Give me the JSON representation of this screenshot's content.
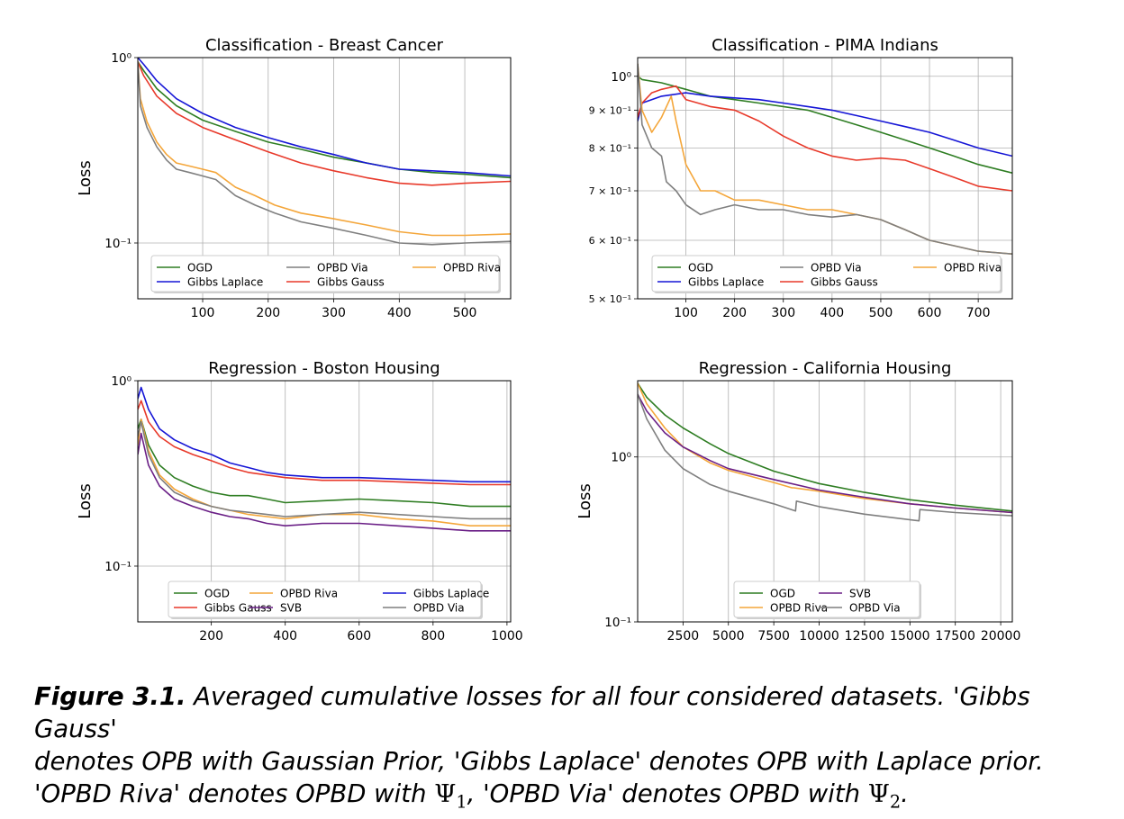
{
  "figure": {
    "label": "Figure 3.1.",
    "caption_line1": " Averaged cumulative losses for all four considered datasets. 'Gibbs Gauss'",
    "caption_line2": "denotes OPB with Gaussian Prior, 'Gibbs Laplace' denotes OPB with Laplace prior.",
    "caption_line3a": "'OPBD Riva' denotes OPBD with ",
    "psi": "Ψ",
    "sub1": "1",
    "caption_line3b": ", 'OPBD Via' denotes OPBD with ",
    "sub2": "2",
    "caption_line3c": "."
  },
  "colors": {
    "OGD": "#2e7d22",
    "Gibbs Gauss": "#e8392a",
    "Gibbs Laplace": "#1515d6",
    "OPBD Riva": "#f4a63a",
    "OPBD Via": "#7f7f7f",
    "SVB": "#6a1f86"
  },
  "chart_data": [
    {
      "type": "line",
      "title": "Classification - Breast Cancer",
      "ylabel": "Loss",
      "xlim": [
        1,
        570
      ],
      "ylim": [
        0.05,
        1.0
      ],
      "yscale": "log",
      "grid": true,
      "xticks": [
        100,
        200,
        300,
        400,
        500
      ],
      "xtick_labels": [
        "100",
        "200",
        "300",
        "400",
        "500"
      ],
      "yticks": [
        1.0,
        0.1
      ],
      "ytick_labels": [
        "10⁰",
        "10⁻¹"
      ],
      "legend": {
        "placement": "lower-center",
        "ncol": 3,
        "entries": [
          "OGD",
          "Gibbs Laplace",
          "OPBD Via",
          "Gibbs Gauss",
          "OPBD Riva"
        ]
      },
      "series": [
        {
          "name": "OGD",
          "x": [
            1,
            10,
            30,
            60,
            100,
            150,
            200,
            250,
            300,
            350,
            400,
            450,
            500,
            570
          ],
          "y": [
            0.95,
            0.85,
            0.68,
            0.55,
            0.46,
            0.4,
            0.35,
            0.32,
            0.29,
            0.27,
            0.25,
            0.24,
            0.235,
            0.225
          ]
        },
        {
          "name": "Gibbs Laplace",
          "x": [
            1,
            10,
            30,
            60,
            100,
            150,
            200,
            250,
            300,
            350,
            400,
            450,
            500,
            570
          ],
          "y": [
            1.0,
            0.92,
            0.75,
            0.6,
            0.5,
            0.42,
            0.37,
            0.33,
            0.3,
            0.27,
            0.25,
            0.245,
            0.24,
            0.23
          ]
        },
        {
          "name": "Gibbs Gauss",
          "x": [
            1,
            10,
            30,
            60,
            100,
            150,
            200,
            250,
            300,
            350,
            400,
            450,
            500,
            570
          ],
          "y": [
            0.95,
            0.8,
            0.62,
            0.5,
            0.42,
            0.36,
            0.31,
            0.27,
            0.245,
            0.225,
            0.21,
            0.205,
            0.21,
            0.215
          ]
        },
        {
          "name": "OPBD Riva",
          "x": [
            1,
            5,
            15,
            30,
            45,
            60,
            80,
            100,
            120,
            150,
            180,
            210,
            250,
            300,
            350,
            400,
            450,
            500,
            570
          ],
          "y": [
            0.95,
            0.6,
            0.45,
            0.35,
            0.3,
            0.27,
            0.26,
            0.25,
            0.24,
            0.2,
            0.18,
            0.16,
            0.145,
            0.135,
            0.125,
            0.115,
            0.11,
            0.11,
            0.112
          ]
        },
        {
          "name": "OPBD Via",
          "x": [
            1,
            5,
            15,
            30,
            45,
            60,
            80,
            100,
            120,
            150,
            180,
            210,
            250,
            300,
            350,
            400,
            450,
            500,
            570
          ],
          "y": [
            0.95,
            0.55,
            0.42,
            0.33,
            0.28,
            0.25,
            0.24,
            0.23,
            0.22,
            0.18,
            0.16,
            0.145,
            0.13,
            0.12,
            0.11,
            0.1,
            0.098,
            0.1,
            0.102
          ]
        }
      ]
    },
    {
      "type": "line",
      "title": "Classification - PIMA Indians",
      "ylabel": "",
      "xlim": [
        1,
        770
      ],
      "ylim": [
        0.5,
        1.06
      ],
      "yscale": "log",
      "grid": true,
      "xticks": [
        100,
        200,
        300,
        400,
        500,
        600,
        700
      ],
      "xtick_labels": [
        "100",
        "200",
        "300",
        "400",
        "500",
        "600",
        "700"
      ],
      "yticks": [
        1.0,
        0.9,
        0.8,
        0.7,
        0.6,
        0.5
      ],
      "ytick_labels": [
        "10⁰",
        "9 × 10⁻¹",
        "8 × 10⁻¹",
        "7 × 10⁻¹",
        "6 × 10⁻¹",
        "5 × 10⁻¹"
      ],
      "legend": {
        "placement": "lower-center",
        "ncol": 3,
        "entries": [
          "OGD",
          "Gibbs Laplace",
          "OPBD Via",
          "Gibbs Gauss",
          "OPBD Riva"
        ]
      },
      "series": [
        {
          "name": "OGD",
          "x": [
            1,
            10,
            50,
            100,
            150,
            200,
            250,
            300,
            350,
            400,
            450,
            500,
            550,
            600,
            650,
            700,
            770
          ],
          "y": [
            1.0,
            0.99,
            0.98,
            0.96,
            0.94,
            0.93,
            0.92,
            0.91,
            0.9,
            0.88,
            0.86,
            0.84,
            0.82,
            0.8,
            0.78,
            0.76,
            0.74
          ]
        },
        {
          "name": "Gibbs Laplace",
          "x": [
            1,
            10,
            50,
            100,
            150,
            200,
            250,
            300,
            350,
            400,
            450,
            500,
            550,
            600,
            650,
            700,
            770
          ],
          "y": [
            0.87,
            0.92,
            0.94,
            0.95,
            0.94,
            0.935,
            0.93,
            0.92,
            0.91,
            0.9,
            0.885,
            0.87,
            0.855,
            0.84,
            0.82,
            0.8,
            0.78
          ]
        },
        {
          "name": "Gibbs Gauss",
          "x": [
            1,
            10,
            30,
            50,
            80,
            100,
            150,
            200,
            250,
            300,
            350,
            400,
            450,
            500,
            550,
            600,
            650,
            700,
            770
          ],
          "y": [
            0.88,
            0.92,
            0.95,
            0.96,
            0.97,
            0.93,
            0.91,
            0.9,
            0.87,
            0.83,
            0.8,
            0.78,
            0.77,
            0.775,
            0.77,
            0.75,
            0.73,
            0.71,
            0.7
          ]
        },
        {
          "name": "OPBD Riva",
          "x": [
            1,
            10,
            30,
            50,
            70,
            80,
            100,
            130,
            160,
            200,
            250,
            300,
            350,
            400,
            450,
            500,
            550,
            600,
            650,
            700,
            770
          ],
          "y": [
            1.04,
            0.9,
            0.84,
            0.88,
            0.94,
            0.87,
            0.76,
            0.7,
            0.7,
            0.68,
            0.68,
            0.67,
            0.66,
            0.66,
            0.65,
            0.64,
            0.62,
            0.6,
            0.59,
            0.58,
            0.575
          ]
        },
        {
          "name": "OPBD Via",
          "x": [
            1,
            10,
            30,
            50,
            60,
            80,
            100,
            130,
            160,
            200,
            250,
            300,
            350,
            400,
            450,
            500,
            550,
            600,
            650,
            700,
            770
          ],
          "y": [
            1.04,
            0.86,
            0.8,
            0.78,
            0.72,
            0.7,
            0.67,
            0.65,
            0.66,
            0.67,
            0.66,
            0.66,
            0.65,
            0.645,
            0.65,
            0.64,
            0.62,
            0.6,
            0.59,
            0.58,
            0.575
          ]
        }
      ]
    },
    {
      "type": "line",
      "title": "Regression - Boston Housing",
      "ylabel": "Loss",
      "xlim": [
        1,
        1010
      ],
      "ylim": [
        0.05,
        1.0
      ],
      "yscale": "log",
      "grid": true,
      "xticks": [
        200,
        400,
        600,
        800,
        1000
      ],
      "xtick_labels": [
        "200",
        "400",
        "600",
        "800",
        "1000"
      ],
      "yticks": [
        1.0,
        0.1
      ],
      "ytick_labels": [
        "10⁰",
        "10⁻¹"
      ],
      "legend": {
        "placement": "lower-center",
        "ncol": 3,
        "entries": [
          "OGD",
          "Gibbs Gauss",
          "OPBD Riva",
          "SVB",
          "Gibbs Laplace",
          "OPBD Via"
        ]
      },
      "series": [
        {
          "name": "OGD",
          "x": [
            1,
            10,
            30,
            60,
            100,
            150,
            200,
            250,
            300,
            350,
            400,
            500,
            600,
            700,
            800,
            900,
            1010
          ],
          "y": [
            0.55,
            0.62,
            0.45,
            0.35,
            0.3,
            0.27,
            0.25,
            0.24,
            0.24,
            0.23,
            0.22,
            0.225,
            0.23,
            0.225,
            0.22,
            0.21,
            0.21
          ]
        },
        {
          "name": "Gibbs Gauss",
          "x": [
            1,
            10,
            30,
            60,
            100,
            150,
            200,
            250,
            300,
            350,
            400,
            500,
            600,
            700,
            800,
            900,
            1010
          ],
          "y": [
            0.7,
            0.78,
            0.6,
            0.5,
            0.44,
            0.4,
            0.37,
            0.34,
            0.32,
            0.31,
            0.3,
            0.29,
            0.29,
            0.285,
            0.28,
            0.275,
            0.275
          ]
        },
        {
          "name": "OPBD Riva",
          "x": [
            1,
            10,
            30,
            60,
            100,
            150,
            200,
            250,
            300,
            350,
            400,
            500,
            600,
            700,
            800,
            900,
            1010
          ],
          "y": [
            0.45,
            0.62,
            0.42,
            0.31,
            0.26,
            0.23,
            0.21,
            0.2,
            0.19,
            0.185,
            0.18,
            0.19,
            0.19,
            0.18,
            0.175,
            0.165,
            0.165
          ]
        },
        {
          "name": "SVB",
          "x": [
            1,
            10,
            30,
            60,
            100,
            150,
            200,
            250,
            300,
            350,
            400,
            500,
            600,
            700,
            800,
            900,
            1010
          ],
          "y": [
            0.4,
            0.52,
            0.35,
            0.27,
            0.23,
            0.21,
            0.195,
            0.185,
            0.18,
            0.17,
            0.165,
            0.17,
            0.17,
            0.165,
            0.16,
            0.155,
            0.155
          ]
        },
        {
          "name": "Gibbs Laplace",
          "x": [
            1,
            10,
            30,
            60,
            100,
            150,
            200,
            250,
            300,
            350,
            400,
            500,
            600,
            700,
            800,
            900,
            1010
          ],
          "y": [
            0.8,
            0.92,
            0.7,
            0.55,
            0.48,
            0.43,
            0.4,
            0.36,
            0.34,
            0.32,
            0.31,
            0.3,
            0.3,
            0.295,
            0.29,
            0.285,
            0.285
          ]
        },
        {
          "name": "OPBD Via",
          "x": [
            1,
            10,
            30,
            60,
            100,
            150,
            200,
            250,
            300,
            350,
            400,
            500,
            600,
            700,
            800,
            900,
            1010
          ],
          "y": [
            0.5,
            0.6,
            0.4,
            0.3,
            0.25,
            0.225,
            0.21,
            0.2,
            0.195,
            0.19,
            0.185,
            0.19,
            0.195,
            0.19,
            0.185,
            0.18,
            0.18
          ]
        }
      ]
    },
    {
      "type": "line",
      "title": "Regression - California Housing",
      "ylabel": "Loss",
      "xlim": [
        1,
        20640
      ],
      "ylim": [
        0.1,
        2.9
      ],
      "yscale": "log",
      "grid": true,
      "xticks": [
        2500,
        5000,
        7500,
        10000,
        12500,
        15000,
        17500,
        20000
      ],
      "xtick_labels": [
        "2500",
        "5000",
        "7500",
        "10000",
        "12500",
        "15000",
        "17500",
        "20000"
      ],
      "yticks": [
        1.0,
        0.1
      ],
      "ytick_labels": [
        "10⁰",
        "10⁻¹"
      ],
      "legend": {
        "placement": "lower-center",
        "ncol": 2,
        "entries": [
          "OGD",
          "OPBD Riva",
          "SVB",
          "OPBD Via"
        ]
      },
      "series": [
        {
          "name": "OGD",
          "x": [
            1,
            500,
            1500,
            2500,
            4000,
            5000,
            7500,
            10000,
            12500,
            15000,
            17500,
            20640
          ],
          "y": [
            2.8,
            2.3,
            1.8,
            1.5,
            1.2,
            1.05,
            0.82,
            0.69,
            0.61,
            0.55,
            0.51,
            0.47
          ]
        },
        {
          "name": "OPBD Riva",
          "x": [
            1,
            500,
            1500,
            2500,
            4000,
            5000,
            7500,
            8500,
            8600,
            10000,
            12500,
            15000,
            17500,
            20640
          ],
          "y": [
            2.8,
            2.1,
            1.5,
            1.15,
            0.92,
            0.83,
            0.7,
            0.65,
            0.65,
            0.62,
            0.56,
            0.52,
            0.49,
            0.46
          ]
        },
        {
          "name": "SVB",
          "x": [
            1,
            500,
            1500,
            2500,
            4000,
            5000,
            7500,
            10000,
            12500,
            15000,
            17500,
            20640
          ],
          "y": [
            2.4,
            1.9,
            1.4,
            1.15,
            0.95,
            0.85,
            0.73,
            0.63,
            0.57,
            0.52,
            0.49,
            0.46
          ]
        },
        {
          "name": "OPBD Via",
          "x": [
            1,
            500,
            1500,
            2500,
            4000,
            5000,
            7500,
            8700,
            8750,
            10000,
            12500,
            15500,
            15550,
            17500,
            20640
          ],
          "y": [
            2.4,
            1.7,
            1.1,
            0.85,
            0.68,
            0.62,
            0.52,
            0.47,
            0.54,
            0.5,
            0.45,
            0.41,
            0.48,
            0.46,
            0.44
          ]
        }
      ]
    }
  ]
}
